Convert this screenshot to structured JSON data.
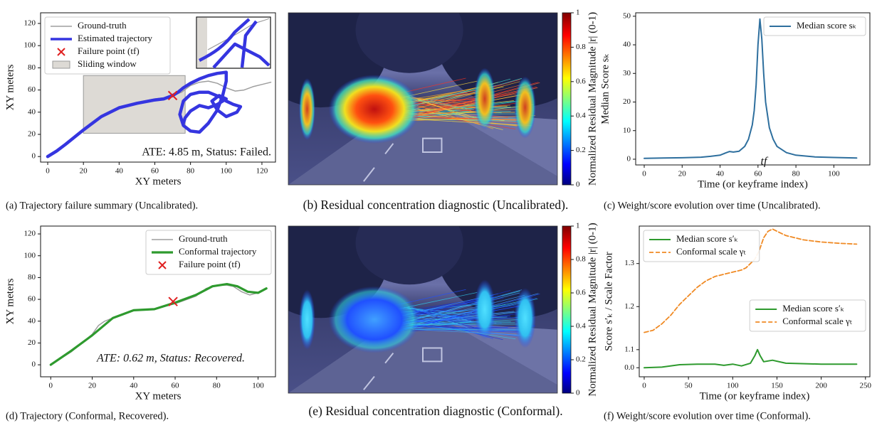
{
  "chart_data": [
    {
      "type": "line",
      "caption": "(a) Trajectory failure summary (Uncalibrated).",
      "xlabel": "XY meters",
      "ylabel": "XY meters",
      "xlim": [
        -4,
        127.6
      ],
      "ylim": [
        -5,
        129.6
      ],
      "xticks": [
        0,
        20,
        40,
        60,
        80,
        100,
        120
      ],
      "yticks": [
        0,
        20,
        40,
        60,
        80,
        100,
        120
      ],
      "legend": [
        "upper left"
      ],
      "note": "ATE: 4.85 m, Status: Failed.",
      "series": [
        {
          "name": "Ground-truth",
          "color": "#9e9e9e",
          "x": [
            0,
            10,
            20,
            30,
            40,
            50,
            60,
            65,
            70,
            75,
            80,
            85,
            90,
            95,
            100,
            105,
            110,
            115,
            120,
            125
          ],
          "values": [
            0,
            12,
            25,
            36,
            44,
            49,
            52,
            53,
            55,
            58,
            64,
            67,
            68,
            66,
            62,
            59,
            60,
            63,
            65,
            67
          ]
        },
        {
          "name": "Estimated trajectory",
          "color": "#3535e0",
          "x": [
            0,
            5,
            10,
            20,
            30,
            40,
            50,
            60,
            65,
            70,
            73,
            76,
            80,
            85,
            90,
            95,
            100,
            100,
            98,
            95,
            90,
            85,
            80,
            76,
            74,
            76,
            80,
            85,
            90,
            96,
            100,
            104,
            108,
            106,
            100,
            95,
            92,
            96,
            100,
            95,
            90,
            85,
            80,
            77,
            76
          ],
          "values": [
            0,
            5,
            11,
            24,
            36,
            44,
            48,
            51,
            52,
            55,
            58,
            62,
            66,
            70,
            73,
            75,
            76,
            68,
            55,
            42,
            30,
            22,
            23,
            28,
            38,
            50,
            56,
            58,
            58,
            54,
            50,
            47,
            45,
            40,
            36,
            42,
            50,
            55,
            52,
            47,
            44,
            46,
            41,
            35,
            30
          ]
        },
        {
          "name": "Failure point (tf)",
          "color": "#e02020",
          "marker": "x",
          "x": [
            70
          ],
          "values": [
            55
          ]
        },
        {
          "name": "Sliding window",
          "color": "#dddad5",
          "shape": "rect",
          "x": [
            20,
            77
          ],
          "values": [
            21,
            73
          ]
        }
      ]
    },
    {
      "type": "image",
      "caption": "(b) Residual concentration diagnostic (Uncalibrated).",
      "colorbar": {
        "label": "Normalized Residual Magnitude |r| (0-1)",
        "colormap": "jet",
        "lim": [
          0,
          1
        ],
        "ticks": [
          0,
          0.2,
          0.4,
          0.6,
          0.8,
          1
        ]
      }
    },
    {
      "type": "line",
      "caption": "(c) Weight/score evolution over time (Uncalibrated).",
      "xlabel": "Time (or keyframe index)",
      "ylabel": "Median Score sₖ",
      "xlim": [
        -4.5,
        119
      ],
      "ylim": [
        -2,
        51.2
      ],
      "xticks": [
        0,
        20,
        40,
        60,
        80,
        100
      ],
      "yticks": [
        0,
        10,
        20,
        30,
        40,
        50
      ],
      "legend": [
        "upper right"
      ],
      "note": "tf",
      "series": [
        {
          "name": "Median score sₖ",
          "color": "#2e6f9e",
          "x": [
            0,
            10,
            20,
            30,
            35,
            40,
            43,
            45,
            47,
            50,
            53,
            55,
            57,
            58,
            59,
            60,
            61,
            62,
            63,
            64,
            66,
            68,
            70,
            75,
            80,
            90,
            100,
            112
          ],
          "values": [
            0.3,
            0.4,
            0.5,
            0.7,
            1.0,
            1.4,
            2.2,
            2.7,
            2.5,
            2.8,
            4.5,
            7,
            12,
            17,
            26,
            40,
            49,
            42,
            30,
            20,
            11,
            7,
            4.5,
            2.3,
            1.4,
            0.8,
            0.6,
            0.4
          ]
        }
      ]
    },
    {
      "type": "line",
      "caption": "(d) Trajectory (Conformal, Recovered).",
      "xlabel": "XY meters",
      "ylabel": "XY meters",
      "xlim": [
        -4.9,
        108.4
      ],
      "ylim": [
        -11,
        127.2
      ],
      "xticks": [
        0,
        20,
        40,
        60,
        80,
        100
      ],
      "yticks": [
        0,
        20,
        40,
        60,
        80,
        100,
        120
      ],
      "legend": [
        "upper right"
      ],
      "note": "ATE: 0.62 m, Status: Recovered.",
      "series": [
        {
          "name": "Ground-truth",
          "color": "#9e9e9e",
          "x": [
            0,
            10,
            20,
            23,
            26,
            30,
            35,
            40,
            50,
            60,
            70,
            75,
            80,
            85,
            88,
            92,
            96,
            100,
            104
          ],
          "values": [
            0,
            12,
            28,
            36,
            40,
            43,
            46,
            50,
            51,
            56,
            63,
            70,
            73,
            73,
            72,
            67,
            64,
            66,
            70
          ]
        },
        {
          "name": "Conformal trajectory",
          "color": "#2e9a2e",
          "x": [
            0,
            10,
            20,
            30,
            40,
            50,
            60,
            70,
            78,
            85,
            90,
            95,
            100,
            104
          ],
          "values": [
            0,
            13,
            27,
            43,
            50,
            51,
            57,
            64,
            72,
            74,
            72,
            67,
            66,
            70
          ]
        },
        {
          "name": "Failure point (tf)",
          "color": "#e02020",
          "marker": "x",
          "x": [
            59
          ],
          "values": [
            58
          ]
        }
      ]
    },
    {
      "type": "image",
      "caption": "(e) Residual concentration diagnostic (Conformal).",
      "colorbar": {
        "label": "Normalized Residual Magnitude |r| (0-1)",
        "colormap": "jet",
        "lim": [
          0,
          1
        ],
        "ticks": [
          0,
          0.2,
          0.4,
          0.6,
          0.8,
          1
        ]
      }
    },
    {
      "type": "line",
      "caption": "(f) Weight/score evolution over time (Conformal).",
      "xlabel": "Time (or keyframe index)",
      "ylabel": "Score s′ₖ / Scale Factor",
      "xlim": [
        -5.6,
        255
      ],
      "ylim": [
        -0.03,
        1.387
      ],
      "ybreak": [
        0.06,
        1.1
      ],
      "xticks": [
        0,
        50,
        100,
        150,
        200,
        250
      ],
      "yticks": [
        {
          "value": 0,
          "label": "0.0"
        },
        1.1,
        1.2,
        1.3
      ],
      "legend": [
        "upper left",
        "center right"
      ],
      "series": [
        {
          "name": "Median score s′ₖ",
          "color": "#2e9a2e",
          "x": [
            0,
            20,
            40,
            60,
            80,
            90,
            100,
            110,
            120,
            125,
            128,
            131,
            135,
            145,
            160,
            200,
            240
          ],
          "values": [
            0,
            0.002,
            0.01,
            0.012,
            0.012,
            0.008,
            0.012,
            0.006,
            0.015,
            0.04,
            0.06,
            0.04,
            0.02,
            0.025,
            0.015,
            0.012,
            0.012
          ]
        },
        {
          "name": "Conformal scale γₜ",
          "color": "#f08a24",
          "style": "dashed",
          "x": [
            0,
            10,
            20,
            30,
            40,
            50,
            60,
            70,
            80,
            90,
            100,
            110,
            115,
            120,
            125,
            130,
            135,
            140,
            145,
            150,
            160,
            180,
            200,
            220,
            240
          ],
          "values": [
            1.14,
            1.145,
            1.16,
            1.18,
            1.205,
            1.225,
            1.245,
            1.26,
            1.27,
            1.275,
            1.28,
            1.285,
            1.29,
            1.3,
            1.31,
            1.33,
            1.36,
            1.375,
            1.38,
            1.375,
            1.365,
            1.355,
            1.35,
            1.347,
            1.345
          ]
        }
      ]
    }
  ]
}
